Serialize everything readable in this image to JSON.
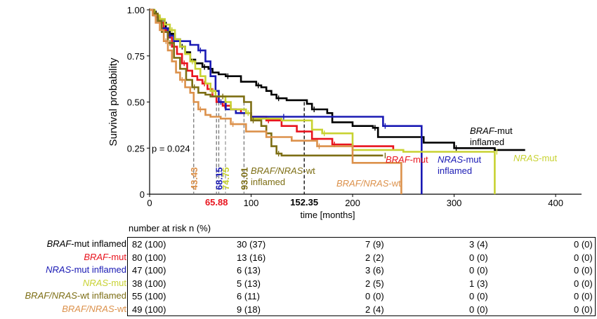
{
  "chart_data": {
    "type": "line",
    "ylabel": "Survival probability",
    "xlabel": "time [months]",
    "xlim": [
      0,
      420
    ],
    "ylim": [
      0,
      1
    ],
    "xticks": [
      0,
      100,
      200,
      300,
      400
    ],
    "yticks": [
      {
        "v": 0,
        "label": "0"
      },
      {
        "v": 0.25,
        "label": "0.25"
      },
      {
        "v": 0.5,
        "label": "0.50"
      },
      {
        "v": 0.75,
        "label": "0.75"
      },
      {
        "v": 1.0,
        "label": "1.00"
      }
    ],
    "p_value": "p = 0.024",
    "series": [
      {
        "name": "BRAF-mut inflamed",
        "italic": "BRAF",
        "rest": "-mut",
        "line2": "inflamed",
        "color": "#000000",
        "points": [
          [
            0,
            1
          ],
          [
            3,
            0.99
          ],
          [
            6,
            0.97
          ],
          [
            9,
            0.95
          ],
          [
            12,
            0.93
          ],
          [
            16,
            0.9
          ],
          [
            20,
            0.87
          ],
          [
            25,
            0.84
          ],
          [
            30,
            0.8
          ],
          [
            35,
            0.77
          ],
          [
            40,
            0.73
          ],
          [
            45,
            0.71
          ],
          [
            52,
            0.69
          ],
          [
            58,
            0.68
          ],
          [
            62,
            0.66
          ],
          [
            68,
            0.65
          ],
          [
            75,
            0.64
          ],
          [
            85,
            0.64
          ],
          [
            90,
            0.61
          ],
          [
            100,
            0.61
          ],
          [
            105,
            0.59
          ],
          [
            110,
            0.58
          ],
          [
            115,
            0.56
          ],
          [
            120,
            0.54
          ],
          [
            125,
            0.52
          ],
          [
            135,
            0.51
          ],
          [
            150,
            0.51
          ],
          [
            155,
            0.49
          ],
          [
            160,
            0.46
          ],
          [
            175,
            0.44
          ],
          [
            180,
            0.39
          ],
          [
            200,
            0.37
          ],
          [
            220,
            0.36
          ],
          [
            225,
            0.31
          ],
          [
            265,
            0.31
          ],
          [
            270,
            0.28
          ],
          [
            300,
            0.25
          ],
          [
            330,
            0.25
          ],
          [
            340,
            0.24
          ],
          [
            370,
            0.24
          ]
        ],
        "median": 152.35,
        "median_label": "152.35",
        "median_label_color": "#000000",
        "median_label_dir": "h"
      },
      {
        "name": "BRAF-mut",
        "italic": "BRAF",
        "rest": "-mut",
        "color": "#e8141e",
        "points": [
          [
            0,
            1
          ],
          [
            3,
            0.98
          ],
          [
            6,
            0.96
          ],
          [
            10,
            0.93
          ],
          [
            14,
            0.89
          ],
          [
            18,
            0.85
          ],
          [
            22,
            0.8
          ],
          [
            27,
            0.76
          ],
          [
            32,
            0.71
          ],
          [
            37,
            0.67
          ],
          [
            42,
            0.64
          ],
          [
            47,
            0.62
          ],
          [
            52,
            0.6
          ],
          [
            57,
            0.57
          ],
          [
            62,
            0.53
          ],
          [
            65.88,
            0.5
          ],
          [
            72,
            0.48
          ],
          [
            80,
            0.46
          ],
          [
            90,
            0.44
          ],
          [
            100,
            0.42
          ],
          [
            115,
            0.4
          ],
          [
            130,
            0.37
          ],
          [
            145,
            0.34
          ],
          [
            160,
            0.3
          ],
          [
            180,
            0.27
          ],
          [
            200,
            0.26
          ],
          [
            220,
            0.26
          ],
          [
            240,
            0.24
          ]
        ],
        "median": 65.88,
        "median_label": "65.88",
        "median_label_color": "#e8141e",
        "median_label_dir": "h"
      },
      {
        "name": "NRAS-mut inflamed",
        "italic": "NRAS",
        "rest": "-mut",
        "line2": "inflamed",
        "color": "#1a1ab4",
        "points": [
          [
            0,
            1
          ],
          [
            4,
            0.97
          ],
          [
            8,
            0.94
          ],
          [
            12,
            0.9
          ],
          [
            18,
            0.86
          ],
          [
            24,
            0.83
          ],
          [
            30,
            0.83
          ],
          [
            40,
            0.81
          ],
          [
            48,
            0.78
          ],
          [
            55,
            0.72
          ],
          [
            60,
            0.64
          ],
          [
            65,
            0.56
          ],
          [
            68.15,
            0.5
          ],
          [
            75,
            0.46
          ],
          [
            85,
            0.44
          ],
          [
            100,
            0.42
          ],
          [
            130,
            0.42
          ],
          [
            160,
            0.42
          ],
          [
            200,
            0.42
          ],
          [
            220,
            0.42
          ],
          [
            230,
            0.37
          ],
          [
            260,
            0.37
          ],
          [
            268,
            0.0
          ]
        ],
        "median": 68.15,
        "median_label": "68.15",
        "median_label_color": "#1a1ab4",
        "median_label_dir": "v"
      },
      {
        "name": "NRAS-mut",
        "italic": "NRAS",
        "rest": "-mut",
        "color": "#c8d232",
        "points": [
          [
            0,
            1
          ],
          [
            5,
            0.97
          ],
          [
            10,
            0.95
          ],
          [
            15,
            0.92
          ],
          [
            20,
            0.89
          ],
          [
            25,
            0.84
          ],
          [
            30,
            0.8
          ],
          [
            35,
            0.76
          ],
          [
            40,
            0.72
          ],
          [
            45,
            0.68
          ],
          [
            50,
            0.64
          ],
          [
            55,
            0.6
          ],
          [
            60,
            0.56
          ],
          [
            65,
            0.53
          ],
          [
            74.75,
            0.5
          ],
          [
            80,
            0.46
          ],
          [
            95,
            0.44
          ],
          [
            100,
            0.41
          ],
          [
            130,
            0.4
          ],
          [
            160,
            0.35
          ],
          [
            170,
            0.33
          ],
          [
            200,
            0.24
          ],
          [
            250,
            0.23
          ],
          [
            300,
            0.23
          ],
          [
            340,
            0.23
          ],
          [
            340,
            0.0
          ]
        ],
        "median": 74.75,
        "median_label": "74.75",
        "median_label_color": "#c8d232",
        "median_label_dir": "v"
      },
      {
        "name": "BRAF/NRAS-wt inflamed",
        "italic": "BRAF/NRAS",
        "rest": "-wt",
        "line2": "inflamed",
        "color": "#7d6e14",
        "points": [
          [
            0,
            1
          ],
          [
            4,
            0.98
          ],
          [
            8,
            0.94
          ],
          [
            12,
            0.88
          ],
          [
            18,
            0.82
          ],
          [
            24,
            0.74
          ],
          [
            30,
            0.68
          ],
          [
            36,
            0.62
          ],
          [
            42,
            0.58
          ],
          [
            48,
            0.55
          ],
          [
            55,
            0.54
          ],
          [
            60,
            0.53
          ],
          [
            70,
            0.53
          ],
          [
            80,
            0.53
          ],
          [
            90,
            0.53
          ],
          [
            93.01,
            0.5
          ],
          [
            100,
            0.4
          ],
          [
            110,
            0.37
          ],
          [
            115,
            0.33
          ],
          [
            120,
            0.26
          ],
          [
            125,
            0.22
          ],
          [
            130,
            0.21
          ],
          [
            160,
            0.21
          ],
          [
            200,
            0.21
          ],
          [
            230,
            0.21
          ]
        ],
        "median": 93.01,
        "median_label": "93.01",
        "median_label_color": "#7d6e14",
        "median_label_dir": "v"
      },
      {
        "name": "BRAF/NRAS-wt",
        "italic": "BRAF/NRAS",
        "rest": "-wt",
        "color": "#dc914b",
        "points": [
          [
            0,
            1
          ],
          [
            3,
            0.97
          ],
          [
            6,
            0.93
          ],
          [
            10,
            0.89
          ],
          [
            14,
            0.83
          ],
          [
            18,
            0.78
          ],
          [
            22,
            0.72
          ],
          [
            26,
            0.66
          ],
          [
            30,
            0.62
          ],
          [
            35,
            0.58
          ],
          [
            40,
            0.55
          ],
          [
            43.43,
            0.5
          ],
          [
            48,
            0.46
          ],
          [
            55,
            0.43
          ],
          [
            60,
            0.42
          ],
          [
            70,
            0.41
          ],
          [
            80,
            0.38
          ],
          [
            95,
            0.34
          ],
          [
            115,
            0.31
          ],
          [
            140,
            0.29
          ],
          [
            165,
            0.26
          ],
          [
            200,
            0.17
          ],
          [
            230,
            0.17
          ],
          [
            248,
            0.0
          ]
        ],
        "median": 43.43,
        "median_label": "43.43",
        "median_label_color": "#dc914b",
        "median_label_dir": "v"
      }
    ]
  },
  "risk_table": {
    "title": "number at risk n (%)",
    "rows": [
      {
        "italic": "BRAF",
        "rest": "-mut inflamed",
        "color": "#000000",
        "cells": [
          "82 (100)",
          "30 (37)",
          "7 (9)",
          "3 (4)",
          "0 (0)"
        ]
      },
      {
        "italic": "BRAF",
        "rest": "-mut",
        "color": "#e8141e",
        "cells": [
          "80 (100)",
          "13 (16)",
          "2 (2)",
          "0 (0)",
          "0 (0)"
        ]
      },
      {
        "italic": "NRAS",
        "rest": "-mut inflamed",
        "color": "#1a1ab4",
        "cells": [
          "47 (100)",
          "6 (13)",
          "3 (6)",
          "0 (0)",
          "0 (0)"
        ]
      },
      {
        "italic": "NRAS",
        "rest": "-mut",
        "color": "#c8d232",
        "cells": [
          "38 (100)",
          "5 (13)",
          "2 (5)",
          "1 (3)",
          "0 (0)"
        ]
      },
      {
        "italic": "BRAF/NRAS",
        "rest": "-wt inflamed",
        "color": "#7d6e14",
        "cells": [
          "55 (100)",
          "6 (11)",
          "0 (0)",
          "0 (0)",
          "0 (0)"
        ]
      },
      {
        "italic": "BRAF/NRAS",
        "rest": "-wt",
        "color": "#dc914b",
        "cells": [
          "49 (100)",
          "9 (18)",
          "2 (4)",
          "0 (0)",
          "0 (0)"
        ]
      }
    ]
  }
}
